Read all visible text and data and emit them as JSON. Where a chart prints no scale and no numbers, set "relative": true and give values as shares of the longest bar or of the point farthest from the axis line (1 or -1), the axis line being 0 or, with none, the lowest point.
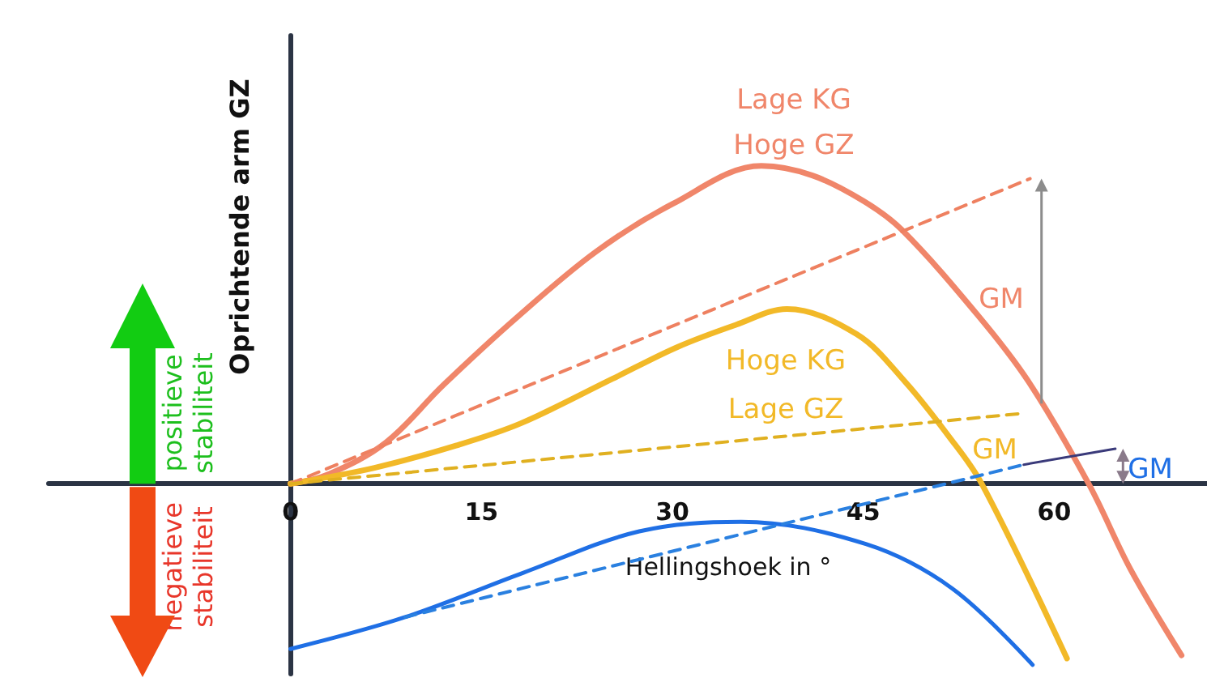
{
  "chart_data": {
    "type": "line",
    "relative": true,
    "xlabel": "Hellingshoek in °",
    "ylabel": "Oprichtende arm GZ",
    "xlim": [
      -19,
      72
    ],
    "xticks": [
      0,
      15,
      30,
      45,
      60
    ],
    "series": [
      {
        "color": "#f0866a",
        "line_style": "solid",
        "x": [
          0,
          3,
          7.5,
          12,
          17.7,
          24,
          30,
          37,
          41,
          45,
          48,
          54,
          58,
          62.7,
          66,
          70
        ],
        "values": [
          0,
          0.03,
          0.13,
          0.31,
          0.52,
          0.73,
          0.88,
          1,
          0.97,
          0.89,
          0.8,
          0.53,
          0.32,
          0,
          -0.27,
          -0.54
        ]
      },
      {
        "color": "#f2b928",
        "line_style": "solid",
        "x": [
          0,
          6.6,
          13,
          18.1,
          25.3,
          30.4,
          35,
          39,
          44.5,
          48.3,
          51.7,
          54.3,
          61
        ],
        "values": [
          0,
          0.05,
          0.12,
          0.19,
          0.33,
          0.43,
          0.5,
          0.55,
          0.47,
          0.32,
          0.15,
          0,
          -0.55
        ]
      },
      {
        "color": "#1f6fe5",
        "line_style": "solid",
        "x": [
          0,
          9,
          18.3,
          27.4,
          35.4,
          45.2,
          52,
          58.3
        ],
        "values": [
          -0.52,
          -0.42,
          -0.28,
          -0.15,
          -0.12,
          -0.19,
          -0.33,
          -0.57
        ]
      },
      {
        "color": "#ee8060",
        "line_style": "dashed",
        "x": [
          0,
          58.1
        ],
        "values": [
          0,
          0.96
        ]
      },
      {
        "color": "#e0b020",
        "line_style": "dashed",
        "x": [
          0,
          57.2
        ],
        "values": [
          0,
          0.22
        ]
      },
      {
        "color": "#2a80e0",
        "line_style": "dashed",
        "x": [
          9,
          57.6
        ],
        "values": [
          -0.42,
          0.06
        ]
      },
      {
        "color": "#3a3a7a",
        "line_style": "solid",
        "x": [
          57.6,
          64.8
        ],
        "values": [
          0.06,
          0.11
        ]
      }
    ],
    "annotations": [
      "Lage KG",
      "Hoge GZ",
      "Hoge KG",
      "Lage GZ",
      "GM",
      "GM",
      "GM",
      "positieve stabiliteit",
      "negatieve stabiliteit"
    ]
  }
}
